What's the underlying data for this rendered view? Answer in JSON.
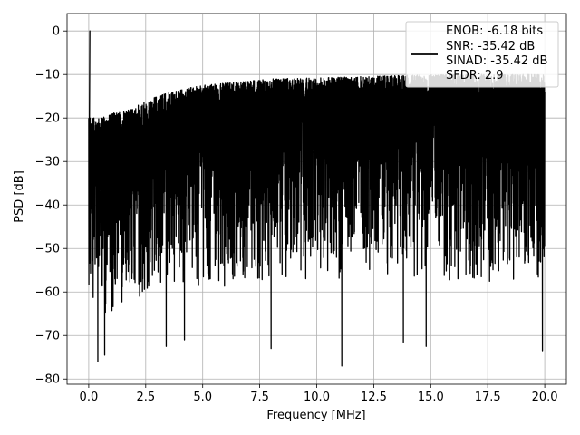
{
  "chart_data": {
    "type": "line",
    "title": "",
    "xlabel": "Frequency [MHz]",
    "ylabel": "PSD [dB]",
    "xlim": [
      -0.95,
      20.95
    ],
    "ylim": [
      -81.2,
      4.0
    ],
    "xticks": [
      0.0,
      2.5,
      5.0,
      7.5,
      10.0,
      12.5,
      15.0,
      17.5,
      20.0
    ],
    "xtick_labels": [
      "0.0",
      "2.5",
      "5.0",
      "7.5",
      "10.0",
      "12.5",
      "15.0",
      "17.5",
      "20.0"
    ],
    "yticks": [
      0,
      -10,
      -20,
      -30,
      -40,
      -50,
      -60,
      -70,
      -80
    ],
    "ytick_labels": [
      "0",
      "−10",
      "−20",
      "−30",
      "−40",
      "−50",
      "−60",
      "−70",
      "−80"
    ],
    "grid": true,
    "legend_location": "upper right",
    "line_color": "#000000",
    "series": [
      {
        "legend_lines": [
          "ENOB: -6.18 bits",
          "SNR: -35.42 dB",
          "SINAD: -35.42 dB",
          "SFDR: 2.9"
        ],
        "peak": {
          "x": 0.05,
          "y": 0.0
        },
        "x_range": [
          0.0,
          20.0
        ],
        "upper_envelope": [
          [
            0.0,
            -20
          ],
          [
            0.5,
            -20
          ],
          [
            1,
            -19
          ],
          [
            2,
            -17.5
          ],
          [
            3,
            -15
          ],
          [
            4,
            -13.5
          ],
          [
            5,
            -12.5
          ],
          [
            6,
            -12
          ],
          [
            7,
            -11.5
          ],
          [
            8,
            -11
          ],
          [
            10,
            -10.8
          ],
          [
            12,
            -10.5
          ],
          [
            14,
            -10.2
          ],
          [
            16,
            -10
          ],
          [
            18,
            -10
          ],
          [
            20,
            -10
          ]
        ],
        "lower_envelope": [
          [
            0.0,
            -60
          ],
          [
            0.5,
            -66
          ],
          [
            2,
            -62
          ],
          [
            4,
            -60
          ],
          [
            6,
            -59
          ],
          [
            8,
            -58
          ],
          [
            10,
            -57
          ],
          [
            12,
            -57
          ],
          [
            14,
            -57
          ],
          [
            16,
            -58
          ],
          [
            18,
            -58
          ],
          [
            20,
            -59
          ]
        ],
        "deep_minima": [
          [
            0.4,
            -76
          ],
          [
            0.7,
            -74.5
          ],
          [
            3.4,
            -72.5
          ],
          [
            4.2,
            -71
          ],
          [
            8.0,
            -73
          ],
          [
            11.1,
            -77
          ],
          [
            13.8,
            -71.5
          ],
          [
            14.8,
            -72.5
          ],
          [
            19.9,
            -73.5
          ]
        ]
      }
    ]
  }
}
